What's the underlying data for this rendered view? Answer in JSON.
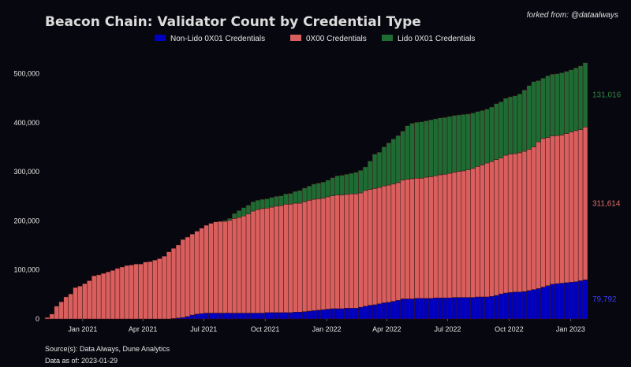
{
  "chart_data": {
    "type": "bar",
    "stacked": true,
    "title": "Beacon Chain: Validator Count by Credential Type",
    "subtitle": "forked from: @dataalways",
    "xlabel": "",
    "ylabel": "",
    "ylim": [
      0,
      530000
    ],
    "grid": false,
    "legend_position": "top-center",
    "y_ticks": [
      {
        "value": 0,
        "label": "0"
      },
      {
        "value": 100000,
        "label": "100,000"
      },
      {
        "value": 200000,
        "label": "200,000"
      },
      {
        "value": 300000,
        "label": "300,000"
      },
      {
        "value": 400000,
        "label": "400,000"
      },
      {
        "value": 500000,
        "label": "500,000"
      }
    ],
    "x_ticks": [
      {
        "date": "2021-01-01",
        "label": "Jan 2021"
      },
      {
        "date": "2021-04-01",
        "label": "Apr 2021"
      },
      {
        "date": "2021-07-01",
        "label": "Jul 2021"
      },
      {
        "date": "2021-10-01",
        "label": "Oct 2021"
      },
      {
        "date": "2022-01-01",
        "label": "Jan 2022"
      },
      {
        "date": "2022-04-01",
        "label": "Apr 2022"
      },
      {
        "date": "2022-07-01",
        "label": "Jul 2022"
      },
      {
        "date": "2022-10-01",
        "label": "Oct 2022"
      },
      {
        "date": "2023-01-01",
        "label": "Jan 2023"
      }
    ],
    "x": [
      "2020-11-09",
      "2020-11-16",
      "2020-11-23",
      "2020-11-30",
      "2020-12-07",
      "2020-12-14",
      "2020-12-21",
      "2020-12-28",
      "2021-01-04",
      "2021-01-11",
      "2021-01-18",
      "2021-01-25",
      "2021-02-01",
      "2021-02-08",
      "2021-02-15",
      "2021-02-22",
      "2021-03-01",
      "2021-03-08",
      "2021-03-15",
      "2021-03-22",
      "2021-03-29",
      "2021-04-05",
      "2021-04-12",
      "2021-04-19",
      "2021-04-26",
      "2021-05-03",
      "2021-05-10",
      "2021-05-17",
      "2021-05-24",
      "2021-05-31",
      "2021-06-07",
      "2021-06-14",
      "2021-06-21",
      "2021-06-28",
      "2021-07-05",
      "2021-07-12",
      "2021-07-19",
      "2021-07-26",
      "2021-08-02",
      "2021-08-09",
      "2021-08-16",
      "2021-08-23",
      "2021-08-30",
      "2021-09-06",
      "2021-09-13",
      "2021-09-20",
      "2021-09-27",
      "2021-10-04",
      "2021-10-11",
      "2021-10-18",
      "2021-10-25",
      "2021-11-01",
      "2021-11-08",
      "2021-11-15",
      "2021-11-22",
      "2021-11-29",
      "2021-12-06",
      "2021-12-13",
      "2021-12-20",
      "2021-12-27",
      "2022-01-03",
      "2022-01-10",
      "2022-01-17",
      "2022-01-24",
      "2022-01-31",
      "2022-02-07",
      "2022-02-14",
      "2022-02-21",
      "2022-02-28",
      "2022-03-07",
      "2022-03-14",
      "2022-03-21",
      "2022-03-28",
      "2022-04-04",
      "2022-04-11",
      "2022-04-18",
      "2022-04-25",
      "2022-05-02",
      "2022-05-09",
      "2022-05-16",
      "2022-05-23",
      "2022-05-30",
      "2022-06-06",
      "2022-06-13",
      "2022-06-20",
      "2022-06-27",
      "2022-07-04",
      "2022-07-11",
      "2022-07-18",
      "2022-07-25",
      "2022-08-01",
      "2022-08-08",
      "2022-08-15",
      "2022-08-22",
      "2022-08-29",
      "2022-09-05",
      "2022-09-12",
      "2022-09-19",
      "2022-09-26",
      "2022-10-03",
      "2022-10-10",
      "2022-10-17",
      "2022-10-24",
      "2022-10-31",
      "2022-11-07",
      "2022-11-14",
      "2022-11-21",
      "2022-11-28",
      "2022-12-05",
      "2022-12-12",
      "2022-12-19",
      "2022-12-26",
      "2023-01-02",
      "2023-01-09",
      "2023-01-16",
      "2023-01-23"
    ],
    "series": [
      {
        "name": "Non-Lido 0X01 Credentials",
        "color": "#0000c0",
        "end_label": "79,792",
        "values": [
          0,
          0,
          0,
          0,
          0,
          0,
          0,
          0,
          0,
          0,
          0,
          0,
          0,
          0,
          0,
          0,
          0,
          0,
          0,
          0,
          0,
          0,
          0,
          0,
          0,
          0,
          0,
          1000,
          2000,
          3000,
          5000,
          8000,
          10000,
          11000,
          12000,
          12000,
          12000,
          12000,
          12000,
          12000,
          12000,
          12000,
          12000,
          12000,
          12000,
          12000,
          12000,
          13000,
          13000,
          13000,
          13000,
          13000,
          13000,
          14000,
          14000,
          15000,
          16000,
          17000,
          18000,
          19000,
          20000,
          21000,
          21000,
          21000,
          22000,
          22000,
          22000,
          24000,
          26000,
          28000,
          29000,
          31000,
          33000,
          34000,
          36000,
          38000,
          41000,
          41000,
          41000,
          42000,
          42000,
          42000,
          42000,
          43000,
          43000,
          43000,
          43000,
          44000,
          44000,
          44000,
          44000,
          44000,
          45000,
          45000,
          45000,
          46000,
          48000,
          51000,
          53000,
          54000,
          55000,
          55000,
          56000,
          58000,
          60000,
          62000,
          65000,
          68000,
          71000,
          72000,
          73000,
          74000,
          75000,
          76000,
          78000,
          79792
        ]
      },
      {
        "name": "0X00 Credentials",
        "color": "#d95f5e",
        "end_label": "311,614",
        "values": [
          3000,
          10000,
          26000,
          35000,
          45000,
          51000,
          64000,
          67000,
          72000,
          78000,
          88000,
          90000,
          93000,
          96000,
          99000,
          103000,
          106000,
          109000,
          110000,
          112000,
          112000,
          116000,
          117000,
          120000,
          123000,
          128000,
          137000,
          143000,
          149000,
          159000,
          162000,
          165000,
          169000,
          174000,
          179000,
          183000,
          186000,
          187000,
          187000,
          189000,
          193000,
          195000,
          198000,
          202000,
          208000,
          211000,
          213000,
          213000,
          215000,
          217000,
          218000,
          221000,
          221000,
          222000,
          222000,
          224000,
          226000,
          227000,
          227000,
          227000,
          229000,
          230000,
          232000,
          232000,
          232000,
          233000,
          233000,
          233000,
          236000,
          236000,
          237000,
          237000,
          238000,
          239000,
          239000,
          240000,
          242000,
          244000,
          245000,
          245000,
          245000,
          247000,
          248000,
          249000,
          251000,
          252000,
          254000,
          255000,
          257000,
          258000,
          260000,
          263000,
          266000,
          269000,
          273000,
          275000,
          277000,
          277000,
          281000,
          282000,
          282000,
          284000,
          286000,
          288000,
          291000,
          299000,
          303000,
          302000,
          302000,
          302000,
          302000,
          304000,
          306000,
          308000,
          308000,
          311614
        ]
      },
      {
        "name": "Lido 0X01 Credentials",
        "color": "#1e6b34",
        "end_label": "131,016",
        "values": [
          0,
          0,
          0,
          0,
          0,
          0,
          0,
          0,
          0,
          0,
          0,
          0,
          0,
          0,
          0,
          0,
          0,
          0,
          0,
          0,
          0,
          0,
          0,
          0,
          0,
          0,
          0,
          0,
          0,
          0,
          0,
          0,
          0,
          0,
          0,
          0,
          0,
          0,
          2000,
          4000,
          10000,
          14000,
          17000,
          18000,
          19000,
          19000,
          19000,
          19000,
          20000,
          20000,
          20000,
          21000,
          22000,
          24000,
          26000,
          28000,
          29000,
          31000,
          32000,
          33000,
          34000,
          37000,
          39000,
          40000,
          41000,
          42000,
          44000,
          46000,
          48000,
          58000,
          70000,
          72000,
          80000,
          86000,
          92000,
          96000,
          100000,
          109000,
          113000,
          114000,
          115000,
          115000,
          116000,
          116000,
          116000,
          116000,
          116000,
          116000,
          115000,
          115000,
          114000,
          113000,
          112000,
          111000,
          110000,
          111000,
          114000,
          115000,
          116000,
          117000,
          118000,
          120000,
          125000,
          130000,
          133000,
          125000,
          123000,
          126000,
          126000,
          126000,
          127000,
          127000,
          127000,
          128000,
          130000,
          131016
        ]
      }
    ],
    "source": "Source(s): Data Always, Dune Analytics",
    "data_as_of": "Data as of: 2023-01-29"
  }
}
